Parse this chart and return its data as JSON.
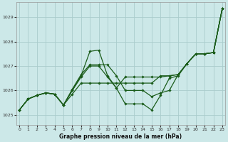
{
  "title": "Graphe pression niveau de la mer (hPa)",
  "bg_color": "#cce8e8",
  "grid_color": "#aacccc",
  "line_color": "#1a5c1a",
  "marker_color": "#1a5c1a",
  "xlim": [
    -0.3,
    23.3
  ],
  "ylim": [
    1024.6,
    1029.6
  ],
  "yticks": [
    1025,
    1026,
    1027,
    1028,
    1029
  ],
  "xticks": [
    0,
    1,
    2,
    3,
    4,
    5,
    6,
    7,
    8,
    9,
    10,
    11,
    12,
    13,
    14,
    15,
    16,
    17,
    18,
    19,
    20,
    21,
    22,
    23
  ],
  "series": [
    [
      1025.2,
      1025.65,
      1025.8,
      1025.9,
      1025.85,
      1025.4,
      1025.85,
      1026.3,
      1026.3,
      1026.3,
      1026.3,
      1026.3,
      1026.3,
      1026.3,
      1026.3,
      1026.3,
      1026.6,
      1026.6,
      1026.65,
      1027.1,
      1027.5,
      1027.5,
      1027.55,
      1029.35
    ],
    [
      1025.2,
      1025.65,
      1025.8,
      1025.9,
      1025.85,
      1025.4,
      1026.0,
      1026.55,
      1027.0,
      1027.0,
      1026.55,
      1026.1,
      1025.45,
      1025.45,
      1025.45,
      1025.2,
      1025.8,
      1026.5,
      1026.6,
      1027.1,
      1027.5,
      1027.5,
      1027.55,
      1029.35
    ],
    [
      1025.2,
      1025.65,
      1025.8,
      1025.9,
      1025.85,
      1025.4,
      1026.05,
      1026.65,
      1027.05,
      1027.05,
      1027.05,
      1026.6,
      1026.0,
      1026.0,
      1026.0,
      1025.75,
      1025.9,
      1026.0,
      1026.65,
      1027.1,
      1027.5,
      1027.5,
      1027.55,
      1029.35
    ],
    [
      1025.2,
      1025.65,
      1025.8,
      1025.9,
      1025.85,
      1025.4,
      1026.0,
      1026.6,
      1027.6,
      1027.65,
      1026.6,
      1026.1,
      1026.55,
      1026.55,
      1026.55,
      1026.55,
      1026.55,
      1026.6,
      1026.65,
      1027.1,
      1027.5,
      1027.5,
      1027.55,
      1029.35
    ]
  ]
}
